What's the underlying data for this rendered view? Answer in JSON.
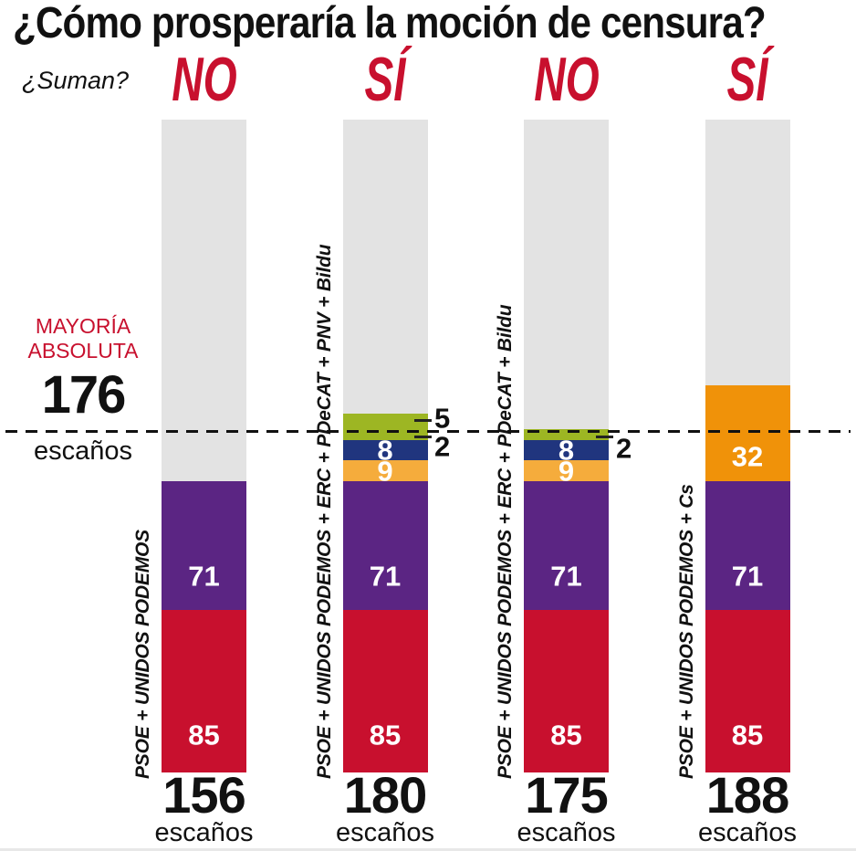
{
  "title": "¿Cómo prosperaría la moción de censura?",
  "suman_label": "¿Suman?",
  "majority": {
    "label_line1": "MAYORÍA",
    "label_line2": "ABSOLUTA",
    "value": "176",
    "unit": "escaños"
  },
  "colors": {
    "red": "#C8102E",
    "purple": "#5B2583",
    "yellow": "#F5AC3C",
    "navy": "#20357E",
    "green": "#9DB623",
    "orange": "#F09209",
    "track": "#E3E3E3",
    "ink": "#111111"
  },
  "chart_data": {
    "type": "bar",
    "stacked": true,
    "unit": "escaños",
    "majority_threshold": 176,
    "legend_position": "none",
    "grid": false,
    "bars": [
      {
        "verdict": "NO",
        "coalition": "PSOE + UNIDOS PODEMOS",
        "total": 156,
        "total_unit": "escaños",
        "segments": [
          {
            "party": "PSOE",
            "value": 85,
            "color_key": "red",
            "label": "85",
            "label_placement": "inside"
          },
          {
            "party": "UNIDOS PODEMOS",
            "value": 71,
            "color_key": "purple",
            "label": "71",
            "label_placement": "inside"
          }
        ]
      },
      {
        "verdict": "SÍ",
        "coalition": "PSOE + UNIDOS PODEMOS + ERC + PDeCAT + PNV + Bildu",
        "total": 180,
        "total_unit": "escaños",
        "segments": [
          {
            "party": "PSOE",
            "value": 85,
            "color_key": "red",
            "label": "85",
            "label_placement": "inside"
          },
          {
            "party": "UNIDOS PODEMOS",
            "value": 71,
            "color_key": "purple",
            "label": "71",
            "label_placement": "inside"
          },
          {
            "party": "ERC",
            "value": 9,
            "color_key": "yellow",
            "label": "9",
            "label_placement": "inside"
          },
          {
            "party": "PDeCAT",
            "value": 8,
            "color_key": "navy",
            "label": "8",
            "label_placement": "inside"
          },
          {
            "party": "Bildu",
            "value": 2,
            "color_key": "green",
            "label": "2",
            "label_placement": "outside"
          },
          {
            "party": "PNV",
            "value": 5,
            "color_key": "green",
            "label": "5",
            "label_placement": "outside"
          }
        ]
      },
      {
        "verdict": "NO",
        "coalition": "PSOE + UNIDOS PODEMOS + ERC + PDeCAT + Bildu",
        "total": 175,
        "total_unit": "escaños",
        "segments": [
          {
            "party": "PSOE",
            "value": 85,
            "color_key": "red",
            "label": "85",
            "label_placement": "inside"
          },
          {
            "party": "UNIDOS PODEMOS",
            "value": 71,
            "color_key": "purple",
            "label": "71",
            "label_placement": "inside"
          },
          {
            "party": "ERC",
            "value": 9,
            "color_key": "yellow",
            "label": "9",
            "label_placement": "inside"
          },
          {
            "party": "PDeCAT",
            "value": 8,
            "color_key": "navy",
            "label": "8",
            "label_placement": "inside"
          },
          {
            "party": "Bildu",
            "value": 2,
            "color_key": "green",
            "label": "2",
            "label_placement": "outside"
          }
        ]
      },
      {
        "verdict": "SÍ",
        "coalition": "PSOE + UNIDOS PODEMOS + Cs",
        "total": 188,
        "total_unit": "escaños",
        "segments": [
          {
            "party": "PSOE",
            "value": 85,
            "color_key": "red",
            "label": "85",
            "label_placement": "inside"
          },
          {
            "party": "UNIDOS PODEMOS",
            "value": 71,
            "color_key": "purple",
            "label": "71",
            "label_placement": "inside"
          },
          {
            "party": "Cs",
            "value": 32,
            "color_key": "orange",
            "label": "32",
            "label_placement": "inside"
          }
        ]
      }
    ]
  }
}
